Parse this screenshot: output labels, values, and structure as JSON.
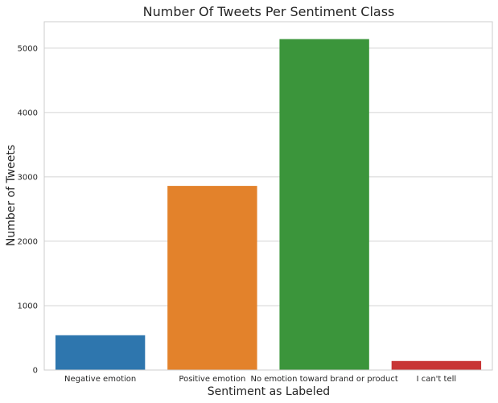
{
  "chart_data": {
    "type": "bar",
    "title": "Number Of Tweets Per Sentiment Class",
    "xlabel": "Sentiment as Labeled",
    "ylabel": "Number of Tweets",
    "categories": [
      "Negative emotion",
      "Positive emotion",
      "No emotion toward brand or product",
      "I can't tell"
    ],
    "values": [
      540,
      2860,
      5140,
      140
    ],
    "colors": [
      "#2e76ae",
      "#e3822b",
      "#3b953b",
      "#c83535"
    ],
    "ylim": [
      0,
      5410
    ],
    "yticks": [
      0,
      1000,
      2000,
      3000,
      4000,
      5000
    ],
    "grid": true,
    "legend": "none"
  }
}
